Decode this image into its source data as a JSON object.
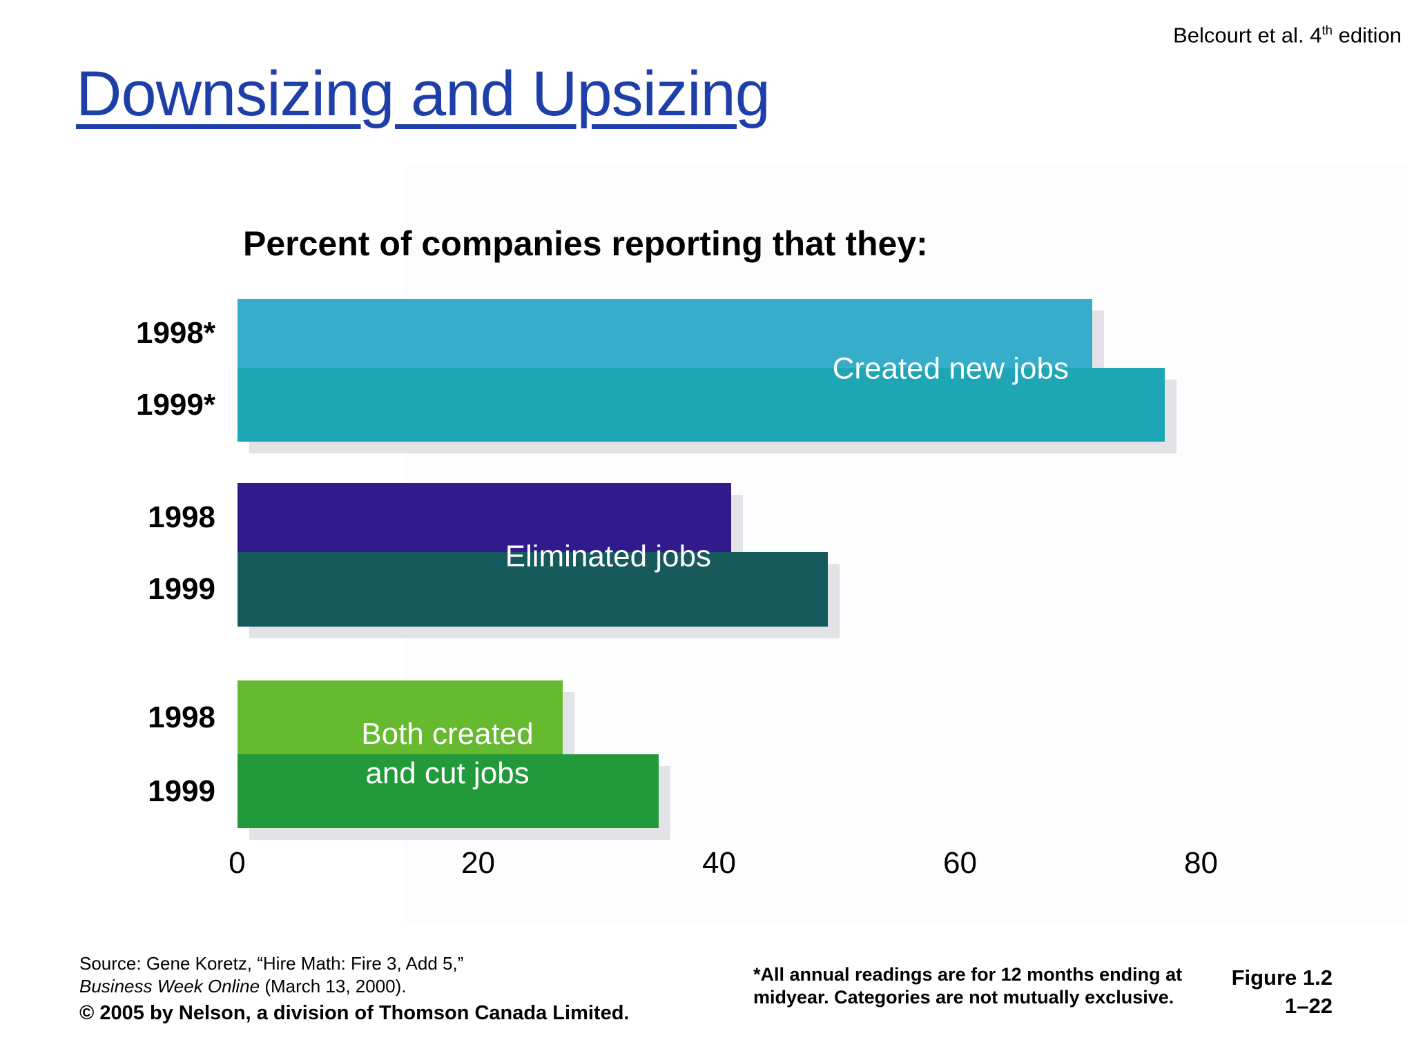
{
  "header": {
    "edition_prefix": "Belcourt et al. 4",
    "edition_sup": "th",
    "edition_suffix": " edition"
  },
  "slide_title": "Downsizing and Upsizing",
  "chart_data": {
    "type": "bar",
    "orientation": "horizontal",
    "title": "Percent of companies reporting that they:",
    "xlim": [
      0,
      80
    ],
    "x_ticks": [
      "0",
      "20",
      "40",
      "60",
      "80"
    ],
    "grid": false,
    "labels_inside_bars": true,
    "groups": [
      {
        "label": "Created new jobs",
        "bars": [
          {
            "year": "1998*",
            "value": 71,
            "color": "#36aecb"
          },
          {
            "year": "1999*",
            "value": 77,
            "color": "#1fa6b4"
          }
        ]
      },
      {
        "label": "Eliminated jobs",
        "bars": [
          {
            "year": "1998",
            "value": 41,
            "color": "#311a8c"
          },
          {
            "year": "1999",
            "value": 49,
            "color": "#165a5c"
          }
        ]
      },
      {
        "label": "Both created\nand cut jobs",
        "bars": [
          {
            "year": "1998",
            "value": 27,
            "color": "#65ba2f"
          },
          {
            "year": "1999",
            "value": 35,
            "color": "#229a3b"
          }
        ]
      }
    ]
  },
  "footnote": "*All annual readings are for 12 months ending at midyear. Categories are not mutually exclusive.",
  "source": {
    "line1": "Source: Gene Koretz, “Hire Math: Fire 3, Add 5,”",
    "journal": "Business Week Online",
    "date_suffix": " (March 13, 2000).",
    "copyright": "© 2005 by Nelson, a division of Thomson Canada Limited."
  },
  "figure": {
    "label": "Figure 1.2",
    "page": "1–22"
  }
}
